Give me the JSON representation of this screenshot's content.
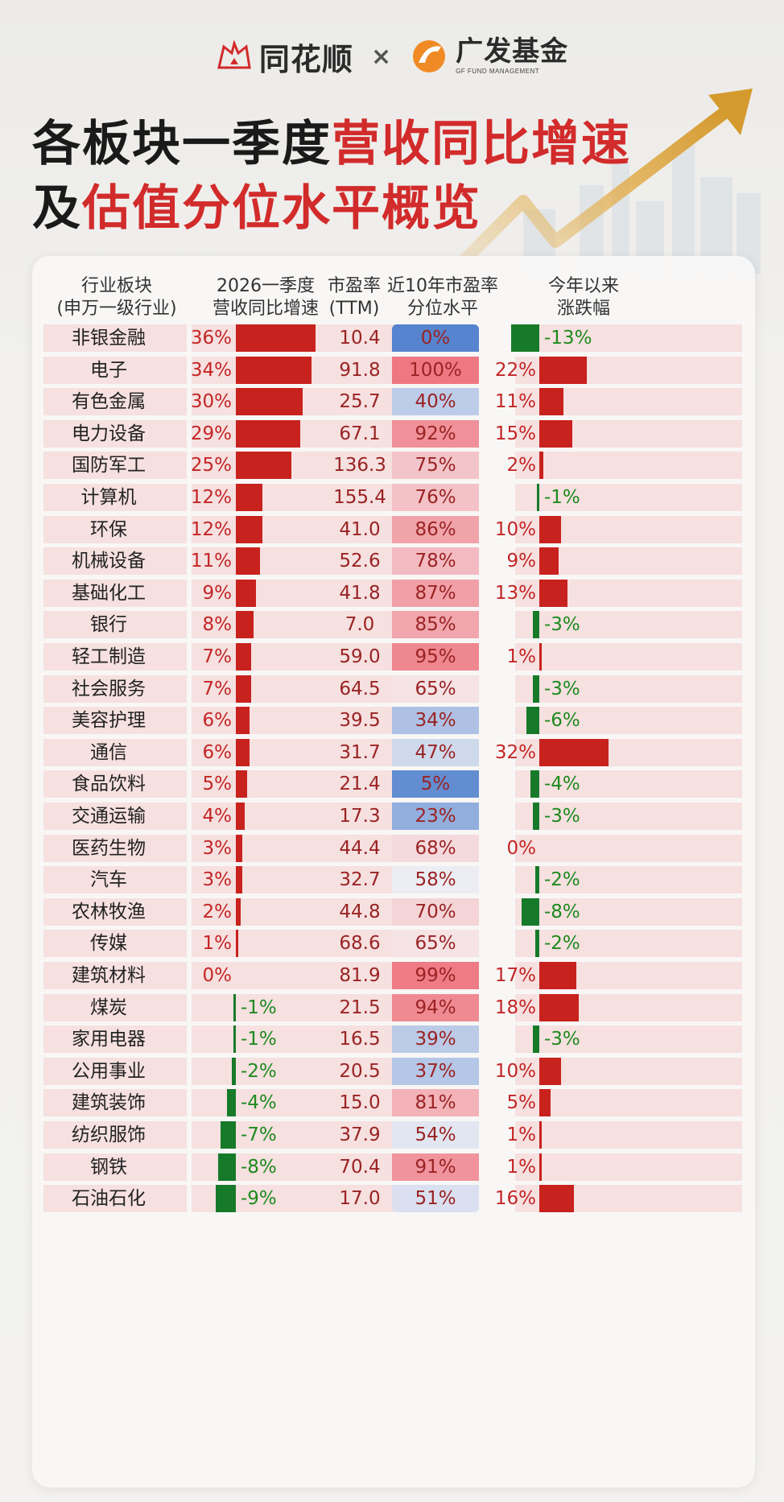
{
  "brand": {
    "left": "同花顺",
    "sep": "×",
    "right": "广发基金",
    "right_sub": "GF FUND MANAGEMENT"
  },
  "title": {
    "line1_a": "各板块一季度",
    "line1_b": "营收同比增速",
    "line2_a": "及",
    "line2_b": "估值分位水平概览"
  },
  "colors": {
    "red": "#c8221e",
    "green": "#177a2a",
    "pos_text": "#c42525",
    "neg_text": "#1e8a1e",
    "title_red": "#d22b2b"
  },
  "headers": {
    "sector": [
      "行业板块",
      "(申万一级行业)"
    ],
    "revenue": [
      "2026一季度",
      "营收同比增速"
    ],
    "pe": [
      "市盈率",
      "(TTM)"
    ],
    "pctile": [
      "近10年市盈率",
      "分位水平"
    ],
    "ytd": [
      "今年以来",
      "涨跌幅"
    ]
  },
  "chart_data": {
    "type": "table",
    "columns": [
      "行业板块(申万一级行业)",
      "2026一季度营收同比增速",
      "市盈率(TTM)",
      "近10年市盈率分位水平",
      "今年以来涨跌幅"
    ],
    "rows": [
      {
        "sector": "非银金融",
        "revenue_growth": "36%",
        "pe": "10.4",
        "pe_percentile": "0%",
        "ytd": "-13%"
      },
      {
        "sector": "电子",
        "revenue_growth": "34%",
        "pe": "91.8",
        "pe_percentile": "100%",
        "ytd": "22%"
      },
      {
        "sector": "有色金属",
        "revenue_growth": "30%",
        "pe": "25.7",
        "pe_percentile": "40%",
        "ytd": "11%"
      },
      {
        "sector": "电力设备",
        "revenue_growth": "29%",
        "pe": "67.1",
        "pe_percentile": "92%",
        "ytd": "15%"
      },
      {
        "sector": "国防军工",
        "revenue_growth": "25%",
        "pe": "136.3",
        "pe_percentile": "75%",
        "ytd": "2%"
      },
      {
        "sector": "计算机",
        "revenue_growth": "12%",
        "pe": "155.4",
        "pe_percentile": "76%",
        "ytd": "-1%"
      },
      {
        "sector": "环保",
        "revenue_growth": "12%",
        "pe": "41.0",
        "pe_percentile": "86%",
        "ytd": "10%"
      },
      {
        "sector": "机械设备",
        "revenue_growth": "11%",
        "pe": "52.6",
        "pe_percentile": "78%",
        "ytd": "9%"
      },
      {
        "sector": "基础化工",
        "revenue_growth": "9%",
        "pe": "41.8",
        "pe_percentile": "87%",
        "ytd": "13%"
      },
      {
        "sector": "银行",
        "revenue_growth": "8%",
        "pe": "7.0",
        "pe_percentile": "85%",
        "ytd": "-3%"
      },
      {
        "sector": "轻工制造",
        "revenue_growth": "7%",
        "pe": "59.0",
        "pe_percentile": "95%",
        "ytd": "1%"
      },
      {
        "sector": "社会服务",
        "revenue_growth": "7%",
        "pe": "64.5",
        "pe_percentile": "65%",
        "ytd": "-3%"
      },
      {
        "sector": "美容护理",
        "revenue_growth": "6%",
        "pe": "39.5",
        "pe_percentile": "34%",
        "ytd": "-6%"
      },
      {
        "sector": "通信",
        "revenue_growth": "6%",
        "pe": "31.7",
        "pe_percentile": "47%",
        "ytd": "32%"
      },
      {
        "sector": "食品饮料",
        "revenue_growth": "5%",
        "pe": "21.4",
        "pe_percentile": "5%",
        "ytd": "-4%"
      },
      {
        "sector": "交通运输",
        "revenue_growth": "4%",
        "pe": "17.3",
        "pe_percentile": "23%",
        "ytd": "-3%"
      },
      {
        "sector": "医药生物",
        "revenue_growth": "3%",
        "pe": "44.4",
        "pe_percentile": "68%",
        "ytd": "0%"
      },
      {
        "sector": "汽车",
        "revenue_growth": "3%",
        "pe": "32.7",
        "pe_percentile": "58%",
        "ytd": "-2%"
      },
      {
        "sector": "农林牧渔",
        "revenue_growth": "2%",
        "pe": "44.8",
        "pe_percentile": "70%",
        "ytd": "-8%"
      },
      {
        "sector": "传媒",
        "revenue_growth": "1%",
        "pe": "68.6",
        "pe_percentile": "65%",
        "ytd": "-2%"
      },
      {
        "sector": "建筑材料",
        "revenue_growth": "0%",
        "pe": "81.9",
        "pe_percentile": "99%",
        "ytd": "17%"
      },
      {
        "sector": "煤炭",
        "revenue_growth": "-1%",
        "pe": "21.5",
        "pe_percentile": "94%",
        "ytd": "18%"
      },
      {
        "sector": "家用电器",
        "revenue_growth": "-1%",
        "pe": "16.5",
        "pe_percentile": "39%",
        "ytd": "-3%"
      },
      {
        "sector": "公用事业",
        "revenue_growth": "-2%",
        "pe": "20.5",
        "pe_percentile": "37%",
        "ytd": "10%"
      },
      {
        "sector": "建筑装饰",
        "revenue_growth": "-4%",
        "pe": "15.0",
        "pe_percentile": "81%",
        "ytd": "5%"
      },
      {
        "sector": "纺织服饰",
        "revenue_growth": "-7%",
        "pe": "37.9",
        "pe_percentile": "54%",
        "ytd": "1%"
      },
      {
        "sector": "钢铁",
        "revenue_growth": "-8%",
        "pe": "70.4",
        "pe_percentile": "91%",
        "ytd": "1%"
      },
      {
        "sector": "石油石化",
        "revenue_growth": "-9%",
        "pe": "17.0",
        "pe_percentile": "51%",
        "ytd": "16%"
      }
    ]
  }
}
